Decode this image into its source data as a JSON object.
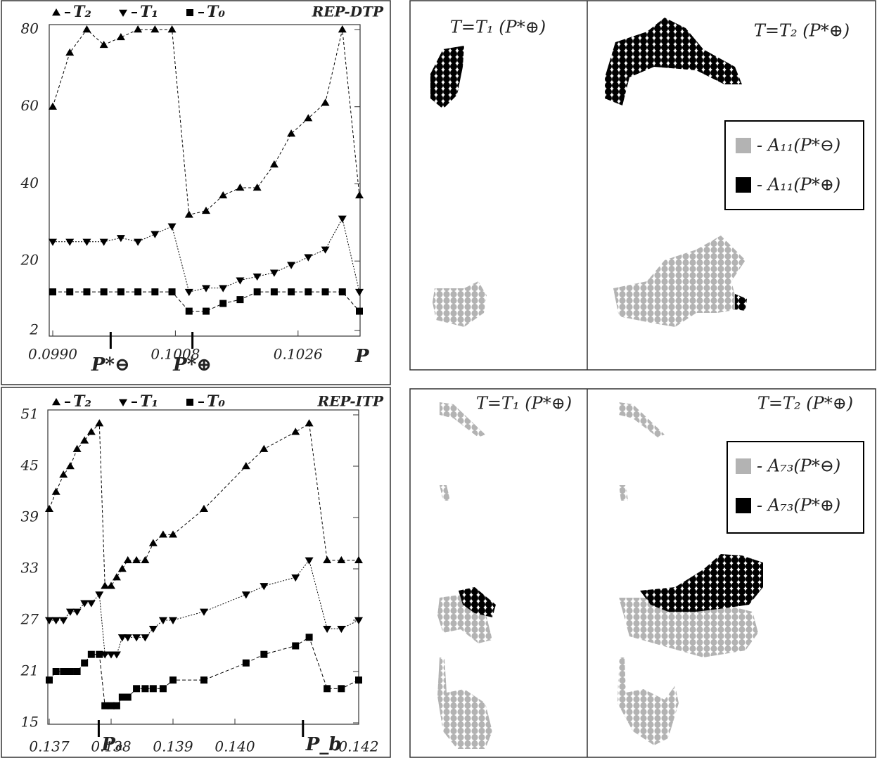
{
  "chart_data": [
    {
      "type": "line",
      "title": "REP-DTP",
      "x_label": "P",
      "x": [
        0.099,
        0.09925,
        0.0995,
        0.09975,
        0.1,
        0.10025,
        0.1005,
        0.10075,
        0.101,
        0.10125,
        0.1015,
        0.10175,
        0.102,
        0.10225,
        0.1025,
        0.10275,
        0.103,
        0.10325,
        0.1035
      ],
      "series": [
        {
          "name": "T₂",
          "marker": "up",
          "color": "#000",
          "values": [
            60,
            74,
            80,
            76,
            78,
            80,
            80,
            80,
            32,
            33,
            37,
            39,
            39,
            45,
            53,
            57,
            61,
            80,
            37
          ]
        },
        {
          "name": "T₁",
          "marker": "down",
          "color": "#000",
          "values": [
            25,
            25,
            25,
            25,
            26,
            25,
            27,
            29,
            12,
            13,
            13,
            15,
            16,
            17,
            19,
            21,
            23,
            31,
            12
          ]
        },
        {
          "name": "T₀",
          "marker": "square",
          "color": "#000",
          "values": [
            12,
            12,
            12,
            12,
            12,
            12,
            12,
            12,
            7,
            7,
            9,
            10,
            12,
            12,
            12,
            12,
            12,
            12,
            7
          ]
        }
      ],
      "xlim": [
        0.099,
        0.1035
      ],
      "ylim": [
        2,
        80
      ],
      "xticks": [
        {
          "value": 0.099,
          "label": "0.0990"
        },
        {
          "value": 0.1008,
          "label": "0.1008"
        },
        {
          "value": 0.1026,
          "label": "0.1026"
        }
      ],
      "yticks": [
        2,
        20,
        40,
        60,
        80
      ],
      "annotations": [
        {
          "label": "P*⊖",
          "x": 0.09985
        },
        {
          "label": "P*⊕",
          "x": 0.10105
        }
      ]
    },
    {
      "type": "line",
      "title": "REP-ITP",
      "x": [
        0.137,
        0.13711,
        0.13723,
        0.13734,
        0.13745,
        0.13757,
        0.13768,
        0.13781,
        0.1379,
        0.138,
        0.13809,
        0.13818,
        0.13827,
        0.13841,
        0.13855,
        0.13868,
        0.13884,
        0.139,
        0.1395,
        0.14018,
        0.14047,
        0.14098,
        0.1412,
        0.14149,
        0.14172,
        0.142
      ],
      "series": [
        {
          "name": "T₂",
          "marker": "up",
          "color": "#000",
          "values": [
            40,
            42,
            44,
            45,
            47,
            48,
            49,
            50,
            31,
            31,
            32,
            33,
            34,
            34,
            34,
            36,
            37,
            37,
            40,
            45,
            47,
            49,
            50,
            34,
            34,
            34
          ]
        },
        {
          "name": "T₁",
          "marker": "down",
          "color": "#000",
          "values": [
            27,
            27,
            27,
            28,
            28,
            29,
            29,
            30,
            23,
            23,
            23,
            25,
            25,
            25,
            25,
            26,
            27,
            27,
            28,
            30,
            31,
            32,
            34,
            26,
            26,
            27
          ]
        },
        {
          "name": "T₀",
          "marker": "square",
          "color": "#000",
          "values": [
            20,
            21,
            21,
            21,
            21,
            22,
            23,
            23,
            17,
            17,
            17,
            18,
            18,
            19,
            19,
            19,
            19,
            20,
            20,
            22,
            23,
            24,
            25,
            19,
            19,
            20
          ]
        }
      ],
      "xlim": [
        0.137,
        0.142
      ],
      "ylim": [
        15,
        51
      ],
      "xticks": [
        0.137,
        0.138,
        0.139,
        {
          "value": 0.14,
          "label": "0.140"
        },
        0.142
      ],
      "yticks": [
        15,
        21,
        27,
        33,
        39,
        45,
        51
      ],
      "annotations": [
        {
          "label": "Pₐ",
          "x": 0.1378
        },
        {
          "label": "P_b",
          "x": 0.1411
        }
      ]
    }
  ],
  "maps": [
    {
      "titles": [
        "T=T₁ (P*⊕)",
        "T=T₂ (P*⊕)"
      ],
      "legend": [
        "- A₁₁(P*⊖)",
        "- A₁₁(P*⊕)"
      ]
    },
    {
      "titles": [
        "T=T₁ (P*⊕)",
        "T=T₂ (P*⊕)"
      ],
      "legend": [
        "- A₇₃(P*⊖)",
        "- A₇₃(P*⊕)"
      ]
    }
  ]
}
